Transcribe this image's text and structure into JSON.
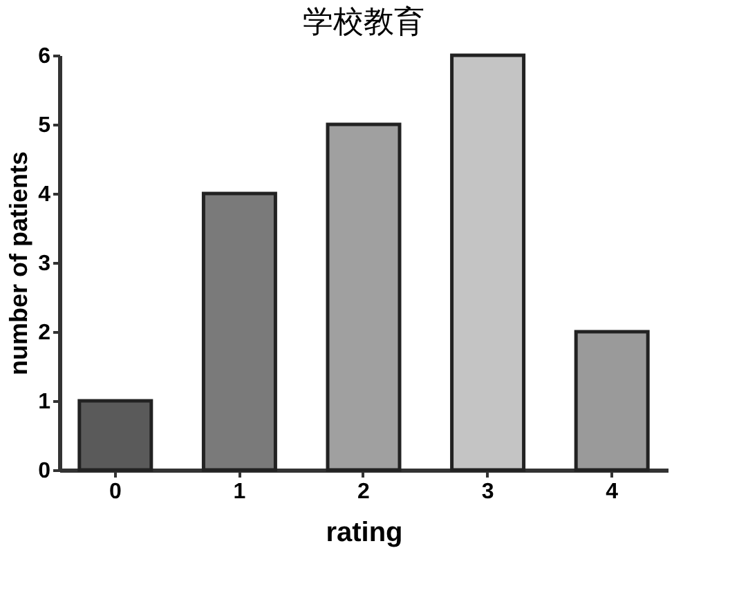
{
  "chart_data": {
    "type": "bar",
    "title": "学校教育",
    "xlabel": "rating",
    "ylabel": "number of patients",
    "categories": [
      "0",
      "1",
      "2",
      "3",
      "4"
    ],
    "values": [
      1,
      4,
      5,
      6,
      2
    ],
    "colors": [
      "#5a5a5a",
      "#7a7a7a",
      "#a0a0a0",
      "#c4c4c4",
      "#9a9a9a"
    ],
    "ylim": [
      0,
      6
    ],
    "yticks": [
      0,
      1,
      2,
      3,
      4,
      5,
      6
    ],
    "grid": false
  }
}
